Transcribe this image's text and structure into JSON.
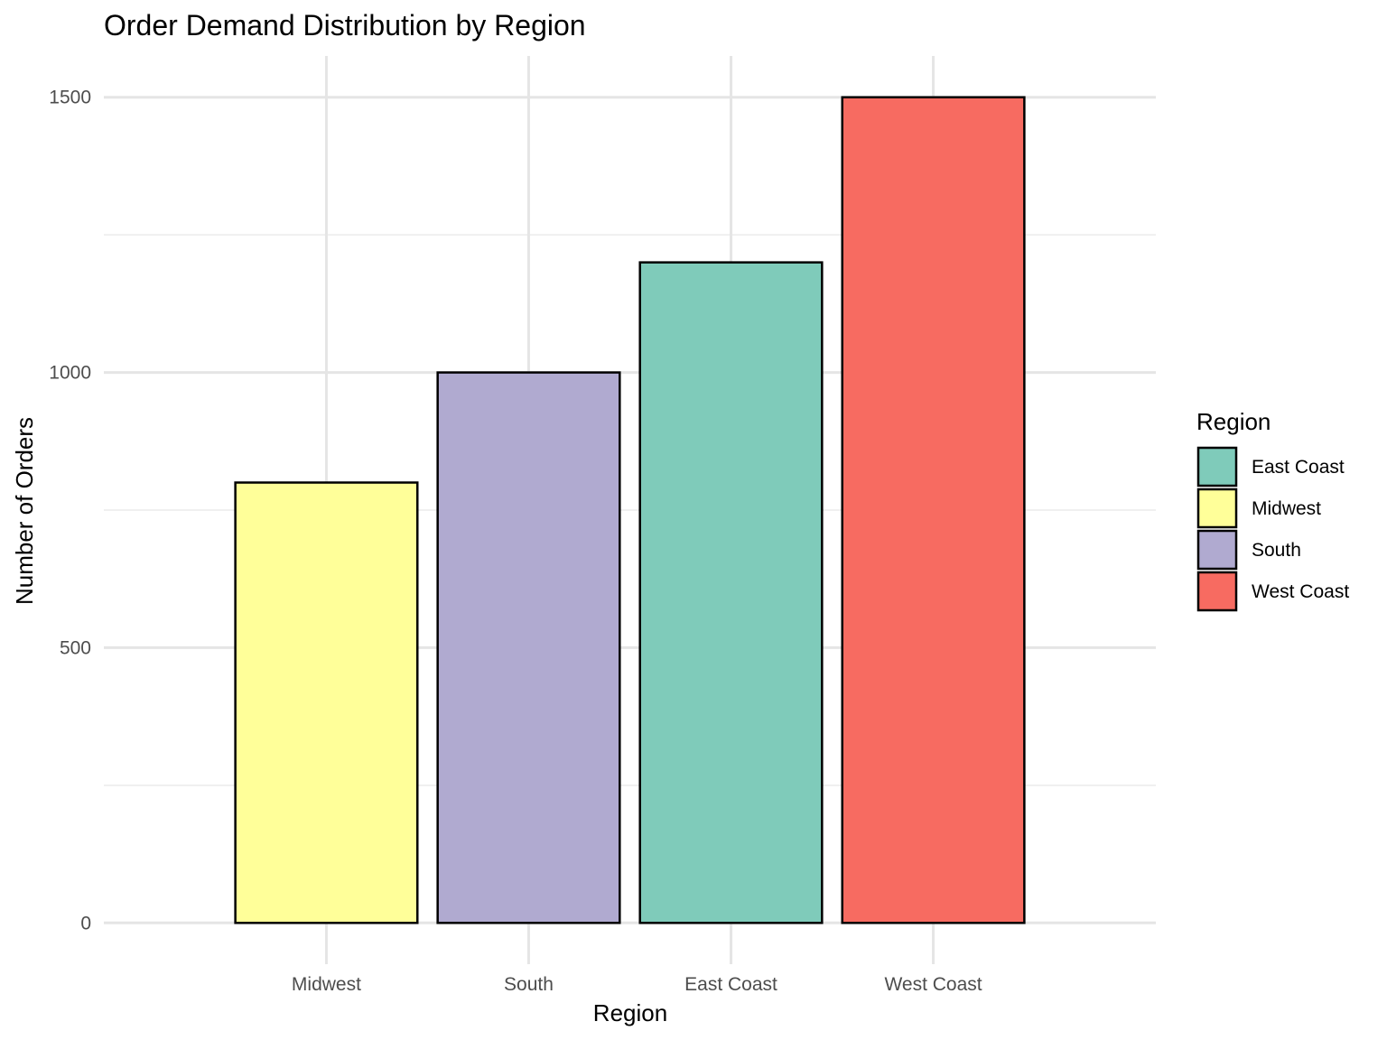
{
  "chart_data": {
    "type": "bar",
    "title": "Order Demand Distribution by Region",
    "xlabel": "Region",
    "ylabel": "Number of Orders",
    "categories": [
      "Midwest",
      "South",
      "East Coast",
      "West Coast"
    ],
    "values": [
      800,
      1000,
      1200,
      1500
    ],
    "ylim": [
      -75,
      1575
    ],
    "yticks": [
      0,
      500,
      1000,
      1500
    ],
    "y_minor_ticks": [
      250,
      750,
      1250
    ],
    "grid": true,
    "colors": {
      "Midwest": "#FFFF99",
      "South": "#B0AAD0",
      "East Coast": "#7FCBBA",
      "West Coast": "#F76B61"
    },
    "bar_border_color": "#000000",
    "legend": {
      "title": "Region",
      "placement": "right",
      "entries": [
        "East Coast",
        "Midwest",
        "South",
        "West Coast"
      ]
    }
  }
}
